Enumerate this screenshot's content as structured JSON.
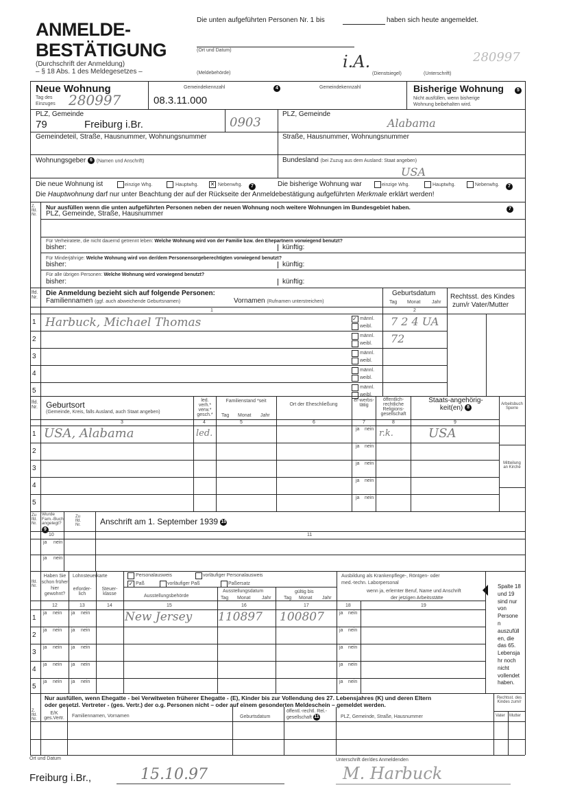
{
  "header": {
    "title_line1": "ANMELDE-",
    "title_line2": "BESTÄTIGUNG",
    "subtitle1": "(Durchschrift der Anmeldung)",
    "subtitle2": "– § 18 Abs. 1 des Meldegesetzes –",
    "notice_part1": "Die unten aufgeführten Personen Nr. 1 bis",
    "notice_part2": "haben sich heute angemeldet.",
    "ort_datum_label": "(Ort und Datum)",
    "meldebehoerde_label": "(Meldebehörde)",
    "dienstsiegel_label": "(Dienstsiegel)",
    "unterschrift_label": "(Unterschrift)",
    "signature_hw": "i.A.",
    "stamp_hw": "280997"
  },
  "new_residence": {
    "title": "Neue Wohnung",
    "move_in_label_1": "Tag des",
    "move_in_label_2": "Einzuges",
    "move_in_value": "280997",
    "gemeindekennzahl_label": "Gemeindekennzahl",
    "gemeindekennzahl_value": "08.3.11.000",
    "gemeindekennzahl_label_2": "Gemeindekennzahl",
    "note_number": "4",
    "plz_label": "PLZ, Gemeinde",
    "plz_value": "79",
    "city_value": "Freiburg i.Br.",
    "code_hw": "0903",
    "street_label": "Gemeindeteil, Straße, Hausnummer, Wohnungsnummer",
    "landlord_label": "Wohnungsgeber",
    "landlord_note": "6",
    "landlord_sub": "(Namen und Anschrift)"
  },
  "previous_residence": {
    "title": "Bisherige Wohnung",
    "note_number": "5",
    "hint_1": "Nicht ausfüllen, wenn bisherige",
    "hint_2": "Wohnung beibehalten wird.",
    "plz_label": "PLZ, Gemeinde",
    "plz_hw": "Alabama",
    "street_label": "Straße, Hausnummer, Wohnungsnummer",
    "state_label": "Bundesland",
    "state_sub": "(bei Zuzug aus dem Ausland: Staat angeben)",
    "state_hw": "USA"
  },
  "residence_type": {
    "new_label": "Die neue Wohnung ist",
    "prev_label": "Die bisherige Wohnung war",
    "options": [
      "einzige Whg.",
      "Hauptwhg.",
      "Nebenwhg."
    ],
    "new_checked": "Nebenwhg.",
    "note_number": "7",
    "rule_part1": "Die",
    "rule_italic1": "Hauptwohnung",
    "rule_part2": "darf nur unter Beachtung der auf der Rückseite der Anmeldebestätigung aufgeführten",
    "rule_italic2": "Merkmale",
    "rule_part3": "erklärt werden!"
  },
  "other_residences": {
    "col_label": "Z. lfd. Nr.",
    "title": "Nur ausfüllen wenn die unten aufgeführten Personen neben der neuen Wohnung noch weitere Wohnungen im Bundesgebiet haben.",
    "note_number": "7",
    "subtitle": "PLZ, Gemeinde, Straße, Hausnummer",
    "questions": [
      {
        "prefix": "Für Verheiratete, die nicht dauernd getrennt leben:",
        "text": "Welche Wohnung wird von der Familie bzw. den Ehepartnern vorwiegend benutzt?"
      },
      {
        "prefix": "Für Minderjährige:",
        "text": "Welche Wohnung wird von der/dem Personensorgeberechtigten vorwiegend benutzt?"
      },
      {
        "prefix": "Für alle übrigen Personen:",
        "text": "Welche Wohnung wird vorwiegend benutzt?"
      }
    ],
    "bisher_label": "bisher:",
    "kuenftig_label": "künftig:"
  },
  "persons": {
    "lfd_label": "lfd. Nr.",
    "title": "Die Anmeldung bezieht sich auf folgende Personen:",
    "surname_label": "Familiennamen",
    "surname_sub": "(ggf. auch abweichende Geburtsnamen)",
    "firstname_label": "Vornamen",
    "firstname_sub": "(Rufnamen unterstreichen)",
    "birthdate_label": "Geburtsdatum",
    "day": "Tag",
    "month": "Monat",
    "year": "Jahr",
    "legal_label_1": "Rechtsst. des Kindes",
    "legal_label_2": "zum/r Vater/Mutter",
    "col1": "1",
    "col2": "2",
    "male": "männl.",
    "female": "weibl.",
    "rows": [
      {
        "nr": "1",
        "name_hw": "Harbuck, Michael Thomas",
        "birth_hw": "7 2 4 UA",
        "male_checked": true
      },
      {
        "nr": "2",
        "name_hw": "",
        "birth_hw": "72",
        "male_checked": false
      },
      {
        "nr": "3",
        "name_hw": "",
        "birth_hw": "",
        "male_checked": false
      },
      {
        "nr": "4",
        "name_hw": "",
        "birth_hw": "",
        "male_checked": false
      },
      {
        "nr": "5",
        "name_hw": "",
        "birth_hw": "",
        "male_checked": false
      }
    ]
  },
  "birthplace": {
    "lfd_label": "lfd. Nr.",
    "label": "Geburtsort",
    "sub": "(Gemeinde, Kreis, falls Ausland, auch Staat angeben)",
    "status_label": "led. verh.* verw.* gesch.*",
    "family_label": "Familienstand *seit",
    "marriage_label": "Ort der Eheschließung",
    "employed_label": "er-werbs-tätig",
    "religion_label": "öffentlich-rechtliche Religions-gesellschaft",
    "nationality_label": "Staats-angehörig-keit(en)",
    "nationality_note": "8",
    "arbeitsbuch_label": "Arbeitsbuch Sperre",
    "church_label": "Mitteilung an Kirche",
    "day": "Tag",
    "month": "Monat",
    "year": "Jahr",
    "yes": "ja",
    "no": "nein",
    "cols": [
      "3",
      "4",
      "5",
      "6",
      "7",
      "8",
      "9"
    ],
    "rows": [
      {
        "nr": "1",
        "place_hw": "USA, Alabama",
        "status_hw": "led.",
        "religion_hw": "r.k.",
        "nationality_hw": "USA"
      },
      {
        "nr": "2",
        "place_hw": "",
        "status_hw": "",
        "religion_hw": "",
        "nationality_hw": ""
      },
      {
        "nr": "3",
        "place_hw": "",
        "status_hw": "",
        "religion_hw": "",
        "nationality_hw": ""
      },
      {
        "nr": "4",
        "place_hw": "",
        "status_hw": "",
        "religion_hw": "",
        "nationality_hw": ""
      },
      {
        "nr": "5",
        "place_hw": "",
        "status_hw": "",
        "religion_hw": "",
        "nationality_hw": ""
      }
    ]
  },
  "address1939": {
    "col_a": "Zu lfd. Nr.",
    "col_b": "Wurde Fam.-Buch angelegt?",
    "col_b_note": "9",
    "col_c": "Zu lfd. Nr.",
    "title": "Anschrift am 1. September 1939",
    "note_number": "10",
    "col10": "10",
    "col11": "11",
    "yes": "ja",
    "no": "nein"
  },
  "documents": {
    "lfd_label": "lfd. Nr.",
    "lived_here": "Haben Sie schon früher hier gewohnt?",
    "tax_card": "Lohnsteuerkarte",
    "required": "erforder-lich",
    "tax_class": "Steuer-klasse",
    "id_options": [
      "Personalausweis",
      "vorläufiger Personalausweis",
      "Paß",
      "vorläufiger Paß",
      "Paßersatz"
    ],
    "checked": "Paß",
    "authority": "Ausstellungsbehörde",
    "issue_date": "Ausstellungsdatum",
    "valid_until": "gültig bis",
    "day": "Tag",
    "month": "Monat",
    "year": "Jahr",
    "training_1": "Ausbildung als Krankenpflege-, Röntgen- oder",
    "training_2": "med.-techn. Laborpersonal",
    "training_sub_1": "wenn ja, erlernter Beruf, Name und Anschrift",
    "training_sub_2": "der jetzigen Arbeitsstätte",
    "side_note": "Spalte 18 und 19 sind nur von Personen auszufüllen, die das 65. Lebensjahr noch nicht vollendet haben.",
    "cols": [
      "12",
      "13",
      "14",
      "15",
      "16",
      "17",
      "18",
      "19"
    ],
    "yes": "ja",
    "no": "nein",
    "rows": [
      {
        "nr": "1",
        "authority_hw": "New Jersey",
        "issue_hw": "110897",
        "valid_hw": "100807"
      },
      {
        "nr": "2",
        "authority_hw": "",
        "issue_hw": "",
        "valid_hw": ""
      },
      {
        "nr": "3",
        "authority_hw": "",
        "issue_hw": "",
        "valid_hw": ""
      },
      {
        "nr": "4",
        "authority_hw": "",
        "issue_hw": "",
        "valid_hw": ""
      },
      {
        "nr": "5",
        "authority_hw": "",
        "issue_hw": "",
        "valid_hw": ""
      }
    ]
  },
  "relatives": {
    "title_1": "Nur ausfüllen, wenn Ehegatte - bei Verwitweten früherer Ehegatte - (E), Kinder bis zur Vollendung des 27. Lebensjahres (K) und deren Eltern",
    "title_2": "oder gesetzl. Vertreter - (ges. Vertr.) der o.g. Personen nicht – oder auf einem gesonderten Meldeschein – gemeldet werden.",
    "col_nr": "Z. lfd. Nr.",
    "col_ek": "E/K ges.Vertr.",
    "col_name": "Familiennamen, Vornamen",
    "col_birth": "Geburtsdatum",
    "col_religion": "öffentl.-rechtl. Rel.-gesellschaft",
    "col_religion_note": "11",
    "col_address": "PLZ, Gemeinde, Straße, Hausnummer",
    "col_legal": "Rechtsst. des Kindes zum/r",
    "col_father": "Vater",
    "col_mother": "Mutter"
  },
  "footer": {
    "place_date_label": "Ort und Datum",
    "place_value": "Freiburg i.Br.,",
    "date_hw": "15.10.97",
    "signature_label": "Unterschrift der/des Anmeldenden",
    "signature_hw": "M. Harbuck"
  }
}
